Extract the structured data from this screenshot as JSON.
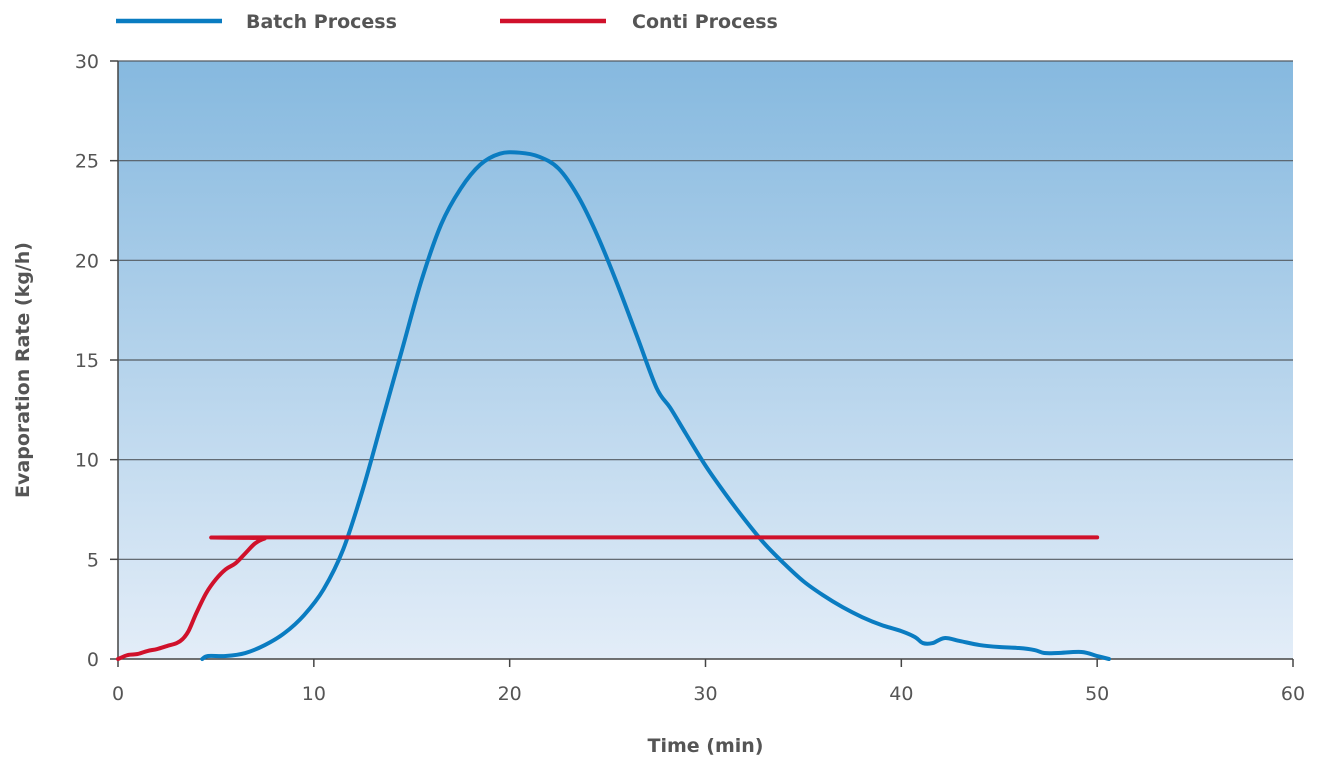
{
  "chart_data": {
    "type": "line",
    "xlabel": "Time (min)",
    "ylabel": "Evaporation Rate (kg/h)",
    "xlim": [
      0,
      60
    ],
    "ylim": [
      0,
      30
    ],
    "xticks": [
      0,
      10,
      20,
      30,
      40,
      50,
      60
    ],
    "yticks": [
      0,
      5,
      10,
      15,
      20,
      25,
      30
    ],
    "grid": "horizontal",
    "legend_position": "top",
    "background": "vertical gradient, light blue at bottom to medium blue at top",
    "series": [
      {
        "name": "Batch Process",
        "color": "#0a7cc1",
        "points": [
          [
            4.3,
            0.0
          ],
          [
            4.6,
            0.15
          ],
          [
            5.5,
            0.15
          ],
          [
            6.5,
            0.3
          ],
          [
            7.5,
            0.7
          ],
          [
            8.5,
            1.3
          ],
          [
            9.5,
            2.2
          ],
          [
            10.5,
            3.5
          ],
          [
            11.5,
            5.5
          ],
          [
            12.5,
            8.5
          ],
          [
            13.5,
            12.0
          ],
          [
            14.5,
            15.5
          ],
          [
            15.5,
            19.0
          ],
          [
            16.5,
            21.8
          ],
          [
            17.5,
            23.6
          ],
          [
            18.5,
            24.8
          ],
          [
            19.5,
            25.35
          ],
          [
            20.5,
            25.4
          ],
          [
            21.5,
            25.2
          ],
          [
            22.5,
            24.6
          ],
          [
            23.5,
            23.2
          ],
          [
            24.5,
            21.2
          ],
          [
            25.5,
            18.8
          ],
          [
            26.5,
            16.2
          ],
          [
            27.5,
            13.6
          ],
          [
            28.2,
            12.6
          ],
          [
            29.0,
            11.3
          ],
          [
            30.0,
            9.7
          ],
          [
            31.0,
            8.3
          ],
          [
            32.0,
            7.0
          ],
          [
            33.0,
            5.8
          ],
          [
            34.0,
            4.8
          ],
          [
            35.0,
            3.9
          ],
          [
            36.0,
            3.2
          ],
          [
            37.0,
            2.6
          ],
          [
            38.0,
            2.1
          ],
          [
            39.0,
            1.7
          ],
          [
            40.0,
            1.4
          ],
          [
            40.7,
            1.1
          ],
          [
            41.1,
            0.8
          ],
          [
            41.6,
            0.8
          ],
          [
            42.2,
            1.05
          ],
          [
            43.0,
            0.9
          ],
          [
            44.0,
            0.7
          ],
          [
            45.0,
            0.6
          ],
          [
            46.0,
            0.55
          ],
          [
            46.8,
            0.45
          ],
          [
            47.3,
            0.3
          ],
          [
            48.0,
            0.3
          ],
          [
            49.2,
            0.35
          ],
          [
            50.0,
            0.15
          ],
          [
            50.6,
            0.0
          ]
        ]
      },
      {
        "name": "Conti Process",
        "color": "#d0112b",
        "points": [
          [
            0,
            0.0
          ],
          [
            0.5,
            0.2
          ],
          [
            1.0,
            0.25
          ],
          [
            1.5,
            0.4
          ],
          [
            2.0,
            0.5
          ],
          [
            2.5,
            0.65
          ],
          [
            3.0,
            0.8
          ],
          [
            3.3,
            1.0
          ],
          [
            3.6,
            1.4
          ],
          [
            4.0,
            2.3
          ],
          [
            4.5,
            3.3
          ],
          [
            5.0,
            4.0
          ],
          [
            5.5,
            4.5
          ],
          [
            6.0,
            4.8
          ],
          [
            6.5,
            5.3
          ],
          [
            7.0,
            5.8
          ],
          [
            7.5,
            6.05
          ],
          [
            8.0,
            6.1
          ],
          [
            50.0,
            6.1
          ]
        ]
      }
    ]
  }
}
